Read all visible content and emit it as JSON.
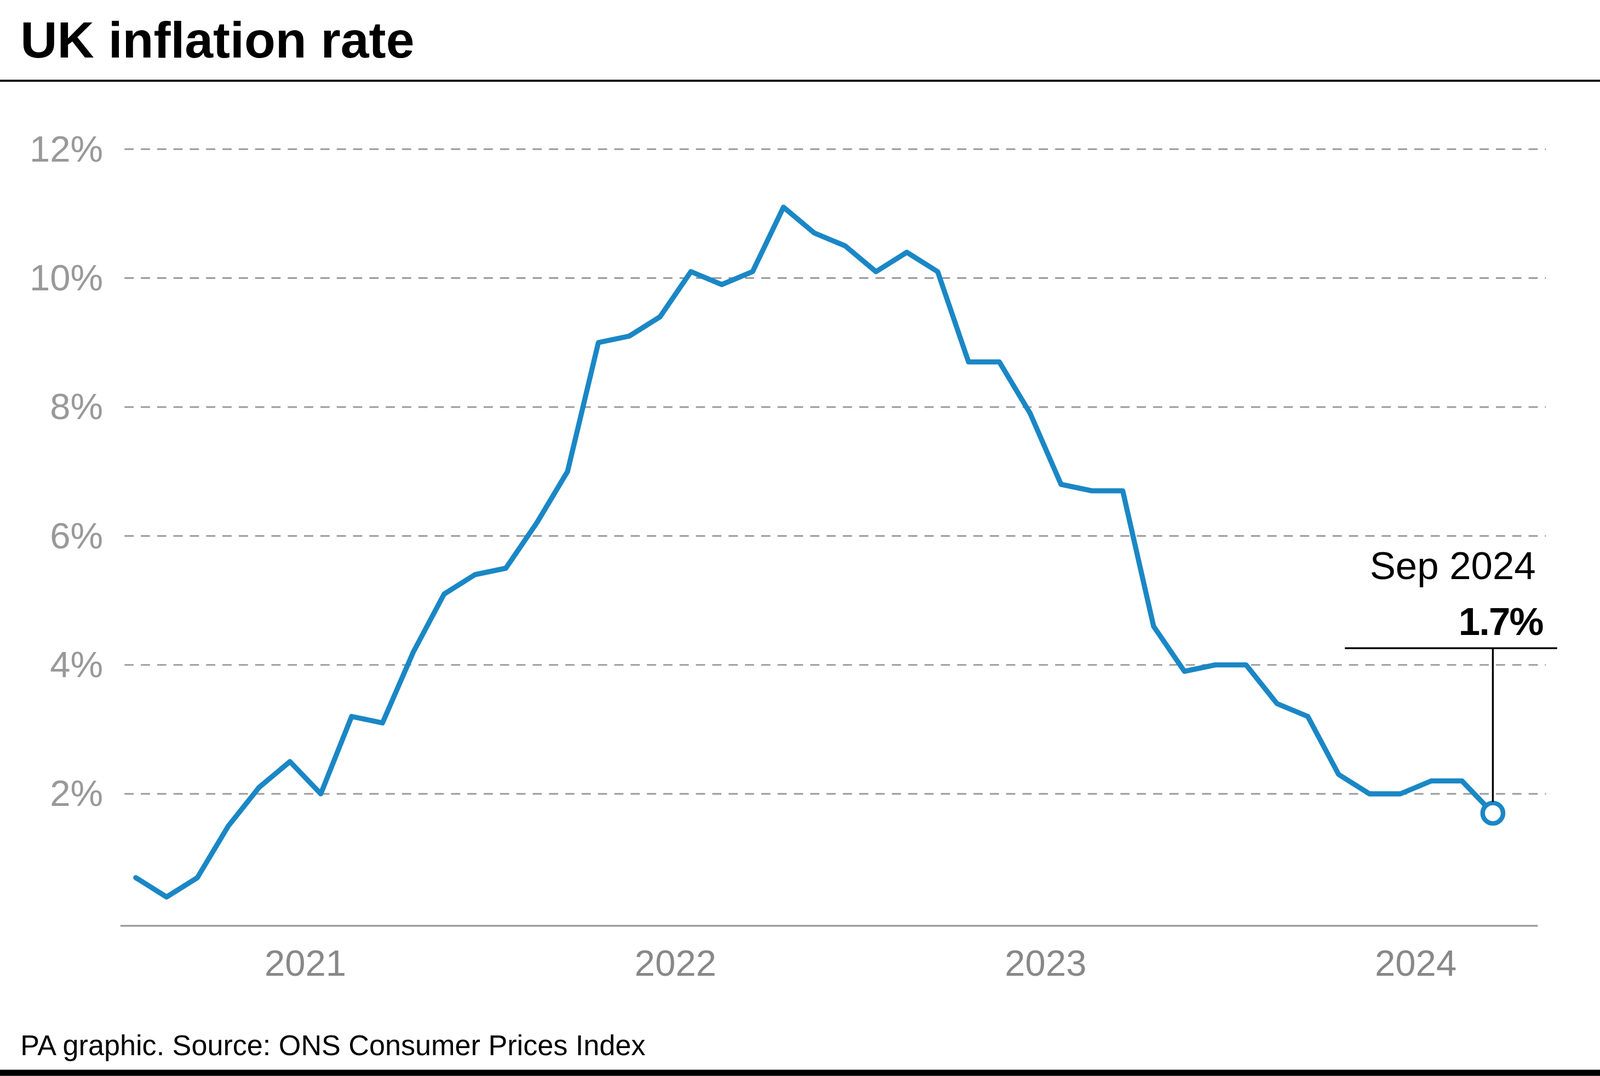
{
  "chart_data": {
    "type": "line",
    "title": "UK inflation rate",
    "source": "PA graphic. Source: ONS Consumer Prices Index",
    "categories": [
      null,
      null,
      null,
      null,
      null,
      "2021",
      null,
      null,
      null,
      null,
      null,
      null,
      null,
      null,
      null,
      null,
      null,
      "2022",
      null,
      null,
      null,
      null,
      null,
      null,
      null,
      null,
      null,
      null,
      null,
      "2023",
      null,
      null,
      null,
      null,
      null,
      null,
      null,
      null,
      null,
      null,
      null,
      "2024",
      null,
      null,
      null
    ],
    "values": [
      0.7,
      0.4,
      0.7,
      1.5,
      2.1,
      2.5,
      2.0,
      3.2,
      3.1,
      4.2,
      5.1,
      5.4,
      5.5,
      6.2,
      7.0,
      9.0,
      9.1,
      9.4,
      10.1,
      9.9,
      10.1,
      11.1,
      10.7,
      10.5,
      10.1,
      10.4,
      10.1,
      8.7,
      8.7,
      7.9,
      6.8,
      6.7,
      6.7,
      4.6,
      3.9,
      4.0,
      4.0,
      3.4,
      3.2,
      2.3,
      2.0,
      2.0,
      2.2,
      2.2,
      1.7
    ],
    "color": "#1a87c5",
    "ylim": [
      0,
      12
    ],
    "yticks": [
      {
        "value": 2,
        "label": "2%"
      },
      {
        "value": 4,
        "label": "4%"
      },
      {
        "value": 6,
        "label": "6%"
      },
      {
        "value": 8,
        "label": "8%"
      },
      {
        "value": 10,
        "label": "10%"
      },
      {
        "value": 12,
        "label": "12%"
      }
    ],
    "grid": true,
    "annotation": {
      "text": "Sep 2024",
      "value_label": "1.7%"
    }
  }
}
